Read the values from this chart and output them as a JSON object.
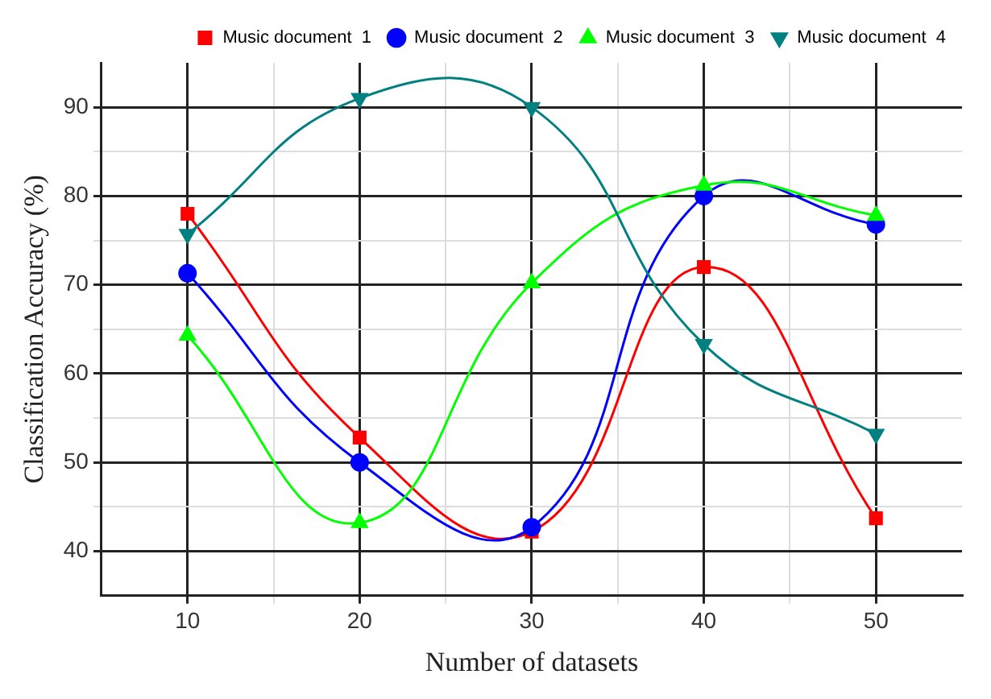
{
  "chart_data": {
    "type": "line",
    "xlabel": "Number of datasets",
    "ylabel": "Classification Accuracy (%)",
    "x": [
      10,
      20,
      30,
      40,
      50
    ],
    "series": [
      {
        "name": "Music document  1",
        "color": "#ff0000",
        "marker": "square",
        "values": [
          78,
          52.8,
          42.2,
          72,
          43.7
        ]
      },
      {
        "name": "Music document  2",
        "color": "#0000ff",
        "marker": "circle",
        "values": [
          71.3,
          50,
          42.7,
          80,
          76.8
        ]
      },
      {
        "name": "Music document  3",
        "color": "#00ff00",
        "marker": "triangle",
        "values": [
          64.3,
          43.2,
          70.2,
          81.2,
          77.8
        ]
      },
      {
        "name": "Music document  4",
        "color": "#008080",
        "marker": "triangle-down",
        "values": [
          75.7,
          91,
          90,
          63.3,
          53.2
        ]
      }
    ],
    "xlim": [
      5,
      55
    ],
    "xticks": [
      10,
      {
        "value": 15,
        "label": null
      },
      20,
      {
        "value": 25,
        "label": null
      },
      30,
      {
        "value": 35,
        "label": null
      },
      40,
      {
        "value": 45,
        "label": null
      },
      50
    ],
    "ylim": [
      35,
      95
    ],
    "yticks": [
      40,
      {
        "value": 45,
        "label": null
      },
      50,
      {
        "value": 55,
        "label": null
      },
      60,
      {
        "value": 65,
        "label": null
      },
      70,
      {
        "value": 75,
        "label": null
      },
      80,
      {
        "value": 85,
        "label": null
      },
      90
    ],
    "grid": true,
    "legend": "top right"
  }
}
